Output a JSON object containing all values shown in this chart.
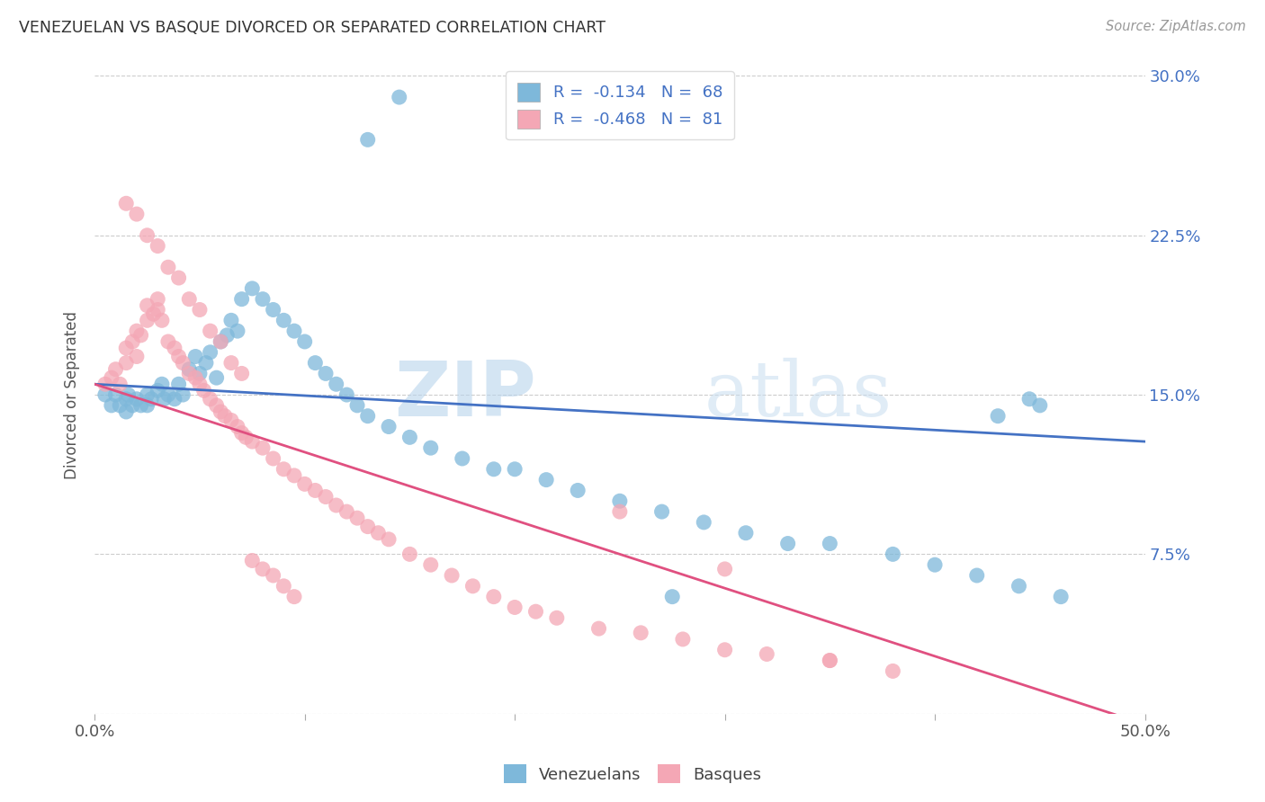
{
  "title": "VENEZUELAN VS BASQUE DIVORCED OR SEPARATED CORRELATION CHART",
  "source": "Source: ZipAtlas.com",
  "ylabel": "Divorced or Separated",
  "legend_label_1": "Venezuelans",
  "legend_label_2": "Basques",
  "r1": "-0.134",
  "n1": "68",
  "r2": "-0.468",
  "n2": "81",
  "color_venezuelan": "#7EB8DA",
  "color_basque": "#F4A7B5",
  "color_line_venezuelan": "#4472C4",
  "color_line_basque": "#E05080",
  "watermark_zip": "ZIP",
  "watermark_atlas": "atlas",
  "xmin": 0.0,
  "xmax": 0.5,
  "ymin": 0.0,
  "ymax": 0.3,
  "ven_line_x0": 0.0,
  "ven_line_y0": 0.155,
  "ven_line_x1": 0.5,
  "ven_line_y1": 0.128,
  "bas_line_x0": 0.0,
  "bas_line_y0": 0.155,
  "bas_line_x1": 0.5,
  "bas_line_y1": -0.005,
  "venezuelan_x": [
    0.005,
    0.008,
    0.01,
    0.012,
    0.015,
    0.015,
    0.016,
    0.018,
    0.02,
    0.022,
    0.025,
    0.025,
    0.027,
    0.03,
    0.032,
    0.033,
    0.035,
    0.038,
    0.04,
    0.042,
    0.045,
    0.048,
    0.05,
    0.053,
    0.055,
    0.058,
    0.06,
    0.063,
    0.065,
    0.068,
    0.07,
    0.075,
    0.08,
    0.085,
    0.09,
    0.095,
    0.1,
    0.105,
    0.11,
    0.115,
    0.12,
    0.125,
    0.13,
    0.14,
    0.15,
    0.16,
    0.175,
    0.19,
    0.2,
    0.215,
    0.23,
    0.25,
    0.27,
    0.29,
    0.31,
    0.33,
    0.35,
    0.38,
    0.4,
    0.42,
    0.44,
    0.46,
    0.13,
    0.145,
    0.275,
    0.43,
    0.445,
    0.45
  ],
  "venezuelan_y": [
    0.15,
    0.145,
    0.15,
    0.145,
    0.148,
    0.142,
    0.15,
    0.145,
    0.148,
    0.145,
    0.15,
    0.145,
    0.148,
    0.152,
    0.155,
    0.148,
    0.15,
    0.148,
    0.155,
    0.15,
    0.162,
    0.168,
    0.16,
    0.165,
    0.17,
    0.158,
    0.175,
    0.178,
    0.185,
    0.18,
    0.195,
    0.2,
    0.195,
    0.19,
    0.185,
    0.18,
    0.175,
    0.165,
    0.16,
    0.155,
    0.15,
    0.145,
    0.14,
    0.135,
    0.13,
    0.125,
    0.12,
    0.115,
    0.115,
    0.11,
    0.105,
    0.1,
    0.095,
    0.09,
    0.085,
    0.08,
    0.08,
    0.075,
    0.07,
    0.065,
    0.06,
    0.055,
    0.27,
    0.29,
    0.055,
    0.14,
    0.148,
    0.145
  ],
  "basque_x": [
    0.005,
    0.008,
    0.01,
    0.012,
    0.015,
    0.015,
    0.018,
    0.02,
    0.02,
    0.022,
    0.025,
    0.025,
    0.028,
    0.03,
    0.03,
    0.032,
    0.035,
    0.038,
    0.04,
    0.042,
    0.045,
    0.048,
    0.05,
    0.052,
    0.055,
    0.058,
    0.06,
    0.062,
    0.065,
    0.068,
    0.07,
    0.072,
    0.075,
    0.08,
    0.085,
    0.09,
    0.095,
    0.1,
    0.105,
    0.11,
    0.115,
    0.12,
    0.125,
    0.13,
    0.135,
    0.14,
    0.15,
    0.16,
    0.17,
    0.18,
    0.19,
    0.2,
    0.21,
    0.22,
    0.24,
    0.26,
    0.28,
    0.3,
    0.32,
    0.35,
    0.38,
    0.25,
    0.3,
    0.35,
    0.015,
    0.02,
    0.025,
    0.03,
    0.035,
    0.04,
    0.045,
    0.05,
    0.055,
    0.06,
    0.065,
    0.07,
    0.075,
    0.08,
    0.085,
    0.09,
    0.095
  ],
  "basque_y": [
    0.155,
    0.158,
    0.162,
    0.155,
    0.165,
    0.172,
    0.175,
    0.168,
    0.18,
    0.178,
    0.185,
    0.192,
    0.188,
    0.19,
    0.195,
    0.185,
    0.175,
    0.172,
    0.168,
    0.165,
    0.16,
    0.158,
    0.155,
    0.152,
    0.148,
    0.145,
    0.142,
    0.14,
    0.138,
    0.135,
    0.132,
    0.13,
    0.128,
    0.125,
    0.12,
    0.115,
    0.112,
    0.108,
    0.105,
    0.102,
    0.098,
    0.095,
    0.092,
    0.088,
    0.085,
    0.082,
    0.075,
    0.07,
    0.065,
    0.06,
    0.055,
    0.05,
    0.048,
    0.045,
    0.04,
    0.038,
    0.035,
    0.03,
    0.028,
    0.025,
    0.02,
    0.095,
    0.068,
    0.025,
    0.24,
    0.235,
    0.225,
    0.22,
    0.21,
    0.205,
    0.195,
    0.19,
    0.18,
    0.175,
    0.165,
    0.16,
    0.072,
    0.068,
    0.065,
    0.06,
    0.055
  ]
}
